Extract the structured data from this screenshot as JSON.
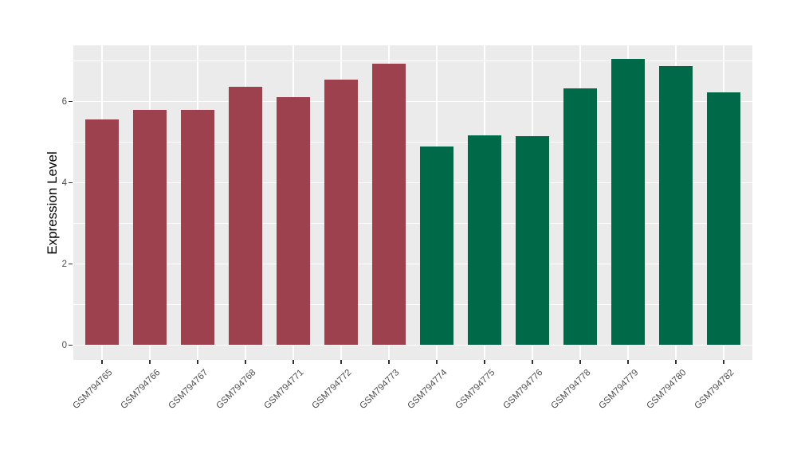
{
  "chart_data": {
    "type": "bar",
    "title": "",
    "xlabel": "",
    "ylabel": "Expression Level",
    "categories": [
      "GSM794765",
      "GSM794766",
      "GSM794767",
      "GSM794768",
      "GSM794771",
      "GSM794772",
      "GSM794773",
      "GSM794774",
      "GSM794775",
      "GSM794776",
      "GSM794778",
      "GSM794779",
      "GSM794780",
      "GSM794782"
    ],
    "values": [
      5.56,
      5.79,
      5.79,
      6.37,
      6.11,
      6.53,
      6.94,
      4.9,
      5.17,
      5.15,
      6.32,
      7.04,
      6.88,
      6.23
    ],
    "groups": [
      "red",
      "red",
      "red",
      "red",
      "red",
      "red",
      "red",
      "green",
      "green",
      "green",
      "green",
      "green",
      "green",
      "green"
    ],
    "group_colors": {
      "red": "#9C414D",
      "green": "#006A48"
    },
    "yticks": [
      0,
      2,
      4,
      6
    ],
    "minor_yticks": [
      1,
      3,
      5,
      7
    ],
    "ylim": [
      -0.36,
      7.38
    ],
    "grid": "on",
    "legend_position": "none",
    "panel_background": "#EBEBEB",
    "gridline_color": "#FFFFFF",
    "axis_text_color": "#4D4D4D"
  }
}
